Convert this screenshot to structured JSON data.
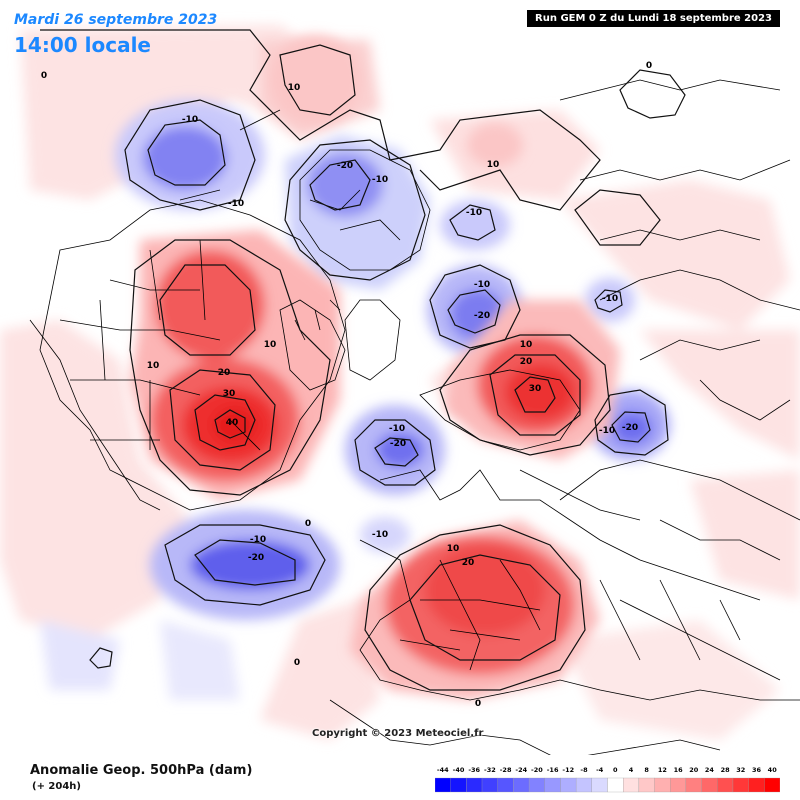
{
  "header": {
    "date": "Mardi 26 septembre 2023",
    "local_time": "14:00 locale",
    "run_info": "Run GEM 0 Z du Lundi 18 septembre 2023"
  },
  "copyright": "Copyright © 2023 Meteociel.fr",
  "footer": {
    "title": "Anomalie Geop. 500hPa (dam)",
    "lead": "(+ 204h)"
  },
  "legend": {
    "ticks": [
      "-44",
      "-40",
      "-36",
      "-32",
      "-28",
      "-24",
      "-20",
      "-16",
      "-12",
      "-8",
      "-4",
      "0",
      "4",
      "8",
      "12",
      "16",
      "20",
      "24",
      "28",
      "32",
      "36",
      "40"
    ],
    "colors": [
      "#0000ff",
      "#1414ff",
      "#2a2aff",
      "#4040ff",
      "#5656ff",
      "#6c6cff",
      "#8282ff",
      "#9898ff",
      "#aeaeff",
      "#c4c4ff",
      "#dadaff",
      "#ffffff",
      "#ffe0e0",
      "#ffc8c8",
      "#ffb0b0",
      "#ff9898",
      "#ff8080",
      "#ff6868",
      "#ff5050",
      "#ff3838",
      "#ff2020",
      "#ff0000"
    ]
  },
  "map": {
    "positive_color": "#ff3b3b",
    "negative_color": "#4f50ee",
    "contour_labels": [
      {
        "id": "label-top-left-0",
        "text": "0"
      },
      {
        "id": "label-n-pacific-10",
        "text": "10"
      },
      {
        "id": "label-bering-minus10",
        "text": "-10"
      },
      {
        "id": "label-bering-minus10-b",
        "text": "-10"
      },
      {
        "id": "label-siberia-minus20",
        "text": "-20"
      },
      {
        "id": "label-siberia-minus10",
        "text": "-10"
      },
      {
        "id": "label-arctic-10",
        "text": "10"
      },
      {
        "id": "label-arctic-minus10",
        "text": "-10"
      },
      {
        "id": "label-polar-minus10",
        "text": "-10"
      },
      {
        "id": "label-polar-minus20",
        "text": "-20"
      },
      {
        "id": "label-asia-0",
        "text": "0"
      },
      {
        "id": "label-asia-minus10",
        "text": "-10"
      },
      {
        "id": "label-canada-10",
        "text": "10"
      },
      {
        "id": "label-us-10",
        "text": "10"
      },
      {
        "id": "label-canada-20",
        "text": "20"
      },
      {
        "id": "label-canada-30",
        "text": "30"
      },
      {
        "id": "label-canada-40",
        "text": "40"
      },
      {
        "id": "label-greenland-10",
        "text": "10"
      },
      {
        "id": "label-greenland-20",
        "text": "20"
      },
      {
        "id": "label-greenland-30",
        "text": "30"
      },
      {
        "id": "label-labrador-minus10",
        "text": "-10"
      },
      {
        "id": "label-labrador-minus20",
        "text": "-20"
      },
      {
        "id": "label-siberia-e-minus10",
        "text": "-10"
      },
      {
        "id": "label-siberia-e-minus20",
        "text": "-20"
      },
      {
        "id": "label-pacific-0",
        "text": "0"
      },
      {
        "id": "label-atlantic-minus10",
        "text": "-10"
      },
      {
        "id": "label-atlantic-minus20",
        "text": "-20"
      },
      {
        "id": "label-atlantic-minus10-b",
        "text": "-10"
      },
      {
        "id": "label-europe-10",
        "text": "10"
      },
      {
        "id": "label-europe-20",
        "text": "20"
      },
      {
        "id": "label-europe-0",
        "text": "0"
      },
      {
        "id": "label-africa-0",
        "text": "0"
      }
    ]
  }
}
